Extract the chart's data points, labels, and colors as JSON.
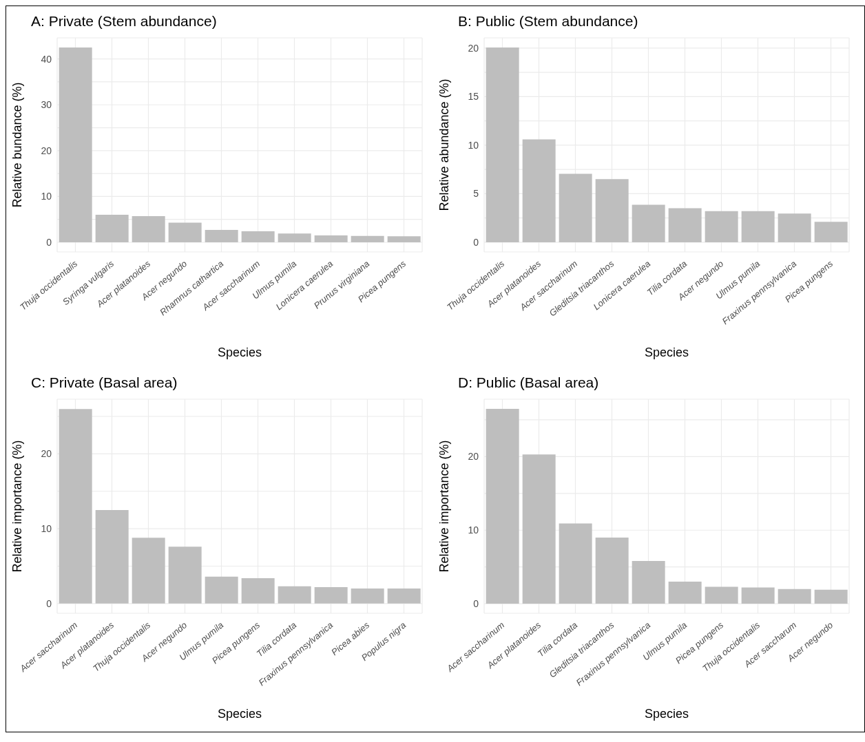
{
  "chart_data": [
    {
      "type": "bar",
      "title": "A: Private (Stem abundance)",
      "xlabel": "Species",
      "ylabel": "Relative bundance (%)",
      "categories": [
        "Thuja occidentalis",
        "Syringa vulgaris",
        "Acer platanoides",
        "Acer negundo",
        "Rhamnus cathartica",
        "Acer saccharinum",
        "Ulmus pumila",
        "Lonicera caerulea",
        "Prunus virginiana",
        "Picea pungens"
      ],
      "values": [
        42.5,
        6.0,
        5.7,
        4.3,
        2.7,
        2.4,
        1.9,
        1.5,
        1.4,
        1.3
      ],
      "color": "#bebebe",
      "ylim": [
        -2.1,
        44.6
      ],
      "yticks": [
        0,
        {
          "value": 5,
          "label": null
        },
        10,
        {
          "value": 15,
          "label": null
        },
        20,
        {
          "value": 25,
          "label": null
        },
        30,
        {
          "value": 35,
          "label": null
        },
        40
      ],
      "grid": true
    },
    {
      "type": "bar",
      "title": "B: Public (Stem abundance)",
      "xlabel": "Species",
      "ylabel": "Relative abundance (%)",
      "categories": [
        "Thuja occidentalis",
        "Acer platanoides",
        "Acer saccharinum",
        "Gleditsia triacanthos",
        "Lonicera caerulea",
        "Tilia cordata",
        "Acer negundo",
        "Ulmus pumila",
        "Fraxinus pennsylvanica",
        "Picea pungens"
      ],
      "values": [
        20.05,
        10.6,
        7.05,
        6.5,
        3.85,
        3.5,
        3.2,
        3.2,
        2.95,
        2.1
      ],
      "color": "#bebebe",
      "ylim": [
        -1.0,
        21.05
      ],
      "yticks": [
        0,
        {
          "value": 2.5,
          "label": null
        },
        5,
        {
          "value": 7.5,
          "label": null
        },
        10,
        {
          "value": 12.5,
          "label": null
        },
        15,
        {
          "value": 17.5,
          "label": null
        },
        20
      ],
      "grid": true
    },
    {
      "type": "bar",
      "title": "C: Private (Basal area)",
      "xlabel": "Species",
      "ylabel": "Relative importance (%)",
      "categories": [
        "Acer saccharinum",
        "Acer platanoides",
        "Thuja occidentalis",
        "Acer negundo",
        "Ulmus pumila",
        "Picea pungens",
        "Tilia cordata",
        "Fraxinus pennsylvanica",
        "Picea abies",
        "Populus nigra"
      ],
      "values": [
        26.0,
        12.5,
        8.8,
        7.6,
        3.6,
        3.4,
        2.3,
        2.2,
        2.0,
        2.0
      ],
      "color": "#bebebe",
      "ylim": [
        -1.3,
        27.3
      ],
      "yticks": [
        0,
        {
          "value": 5,
          "label": null
        },
        10,
        {
          "value": 15,
          "label": null
        },
        20,
        {
          "value": 25,
          "label": null
        }
      ],
      "grid": true
    },
    {
      "type": "bar",
      "title": "D: Public (Basal area)",
      "xlabel": "Species",
      "ylabel": "Relative importance (%)",
      "categories": [
        "Acer saccharinum",
        "Acer platanoides",
        "Tilia cordata",
        "Gleditsia triacanthos",
        "Fraxinus pennsylvanica",
        "Ulmus pumila",
        "Picea pungens",
        "Thuja occidentalis",
        "Acer saccharum",
        "Acer negundo"
      ],
      "values": [
        26.5,
        20.3,
        10.9,
        9.0,
        5.8,
        3.0,
        2.3,
        2.2,
        2.0,
        1.9
      ],
      "color": "#bebebe",
      "ylim": [
        -1.3,
        27.8
      ],
      "yticks": [
        0,
        {
          "value": 5,
          "label": null
        },
        10,
        {
          "value": 15,
          "label": null
        },
        20,
        {
          "value": 25,
          "label": null
        }
      ],
      "grid": true
    }
  ]
}
